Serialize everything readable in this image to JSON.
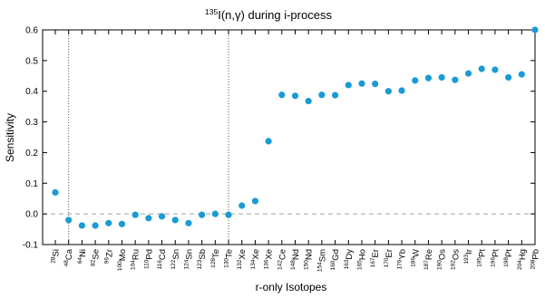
{
  "chart_data": {
    "type": "scatter",
    "title": {
      "superscript": "135",
      "text": "I(n,γ) during i-process"
    },
    "xlabel": "r-only Isotopes",
    "ylabel": "Sensitivity",
    "ylim": [
      -0.1,
      0.6
    ],
    "yticks": [
      "-0.1",
      "0.0",
      "0.1",
      "0.2",
      "0.3",
      "0.4",
      "0.5",
      "0.6"
    ],
    "ytick_values": [
      -0.1,
      0.0,
      0.1,
      0.2,
      0.3,
      0.4,
      0.5,
      0.6
    ],
    "reference_line": 0.0,
    "group_dividers_after": [
      "48Ca",
      "130Te"
    ],
    "grid": false,
    "marker_color": "#1a9ad6",
    "points": [
      {
        "mass": "28",
        "element": "Si",
        "value": 0.07
      },
      {
        "mass": "48",
        "element": "Ca",
        "value": -0.02
      },
      {
        "mass": "64",
        "element": "Ni",
        "value": -0.038
      },
      {
        "mass": "82",
        "element": "Se",
        "value": -0.038
      },
      {
        "mass": "96",
        "element": "Zr",
        "value": -0.03
      },
      {
        "mass": "100",
        "element": "Mo",
        "value": -0.033
      },
      {
        "mass": "104",
        "element": "Ru",
        "value": -0.003
      },
      {
        "mass": "110",
        "element": "Pd",
        "value": -0.014
      },
      {
        "mass": "116",
        "element": "Cd",
        "value": -0.008
      },
      {
        "mass": "122",
        "element": "Sn",
        "value": -0.02
      },
      {
        "mass": "124",
        "element": "Sn",
        "value": -0.03
      },
      {
        "mass": "123",
        "element": "Sb",
        "value": -0.003
      },
      {
        "mass": "128",
        "element": "Te",
        "value": 0.0
      },
      {
        "mass": "130",
        "element": "Te",
        "value": -0.003
      },
      {
        "mass": "132",
        "element": "Xe",
        "value": 0.027
      },
      {
        "mass": "134",
        "element": "Xe",
        "value": 0.042
      },
      {
        "mass": "136",
        "element": "Xe",
        "value": 0.237
      },
      {
        "mass": "142",
        "element": "Ce",
        "value": 0.388
      },
      {
        "mass": "148",
        "element": "Nd",
        "value": 0.385
      },
      {
        "mass": "150",
        "element": "Nd",
        "value": 0.368
      },
      {
        "mass": "154",
        "element": "Sm",
        "value": 0.388
      },
      {
        "mass": "160",
        "element": "Gd",
        "value": 0.387
      },
      {
        "mass": "163",
        "element": "Dy",
        "value": 0.42
      },
      {
        "mass": "165",
        "element": "Ho",
        "value": 0.425
      },
      {
        "mass": "167",
        "element": "Er",
        "value": 0.424
      },
      {
        "mass": "170",
        "element": "Er",
        "value": 0.4
      },
      {
        "mass": "176",
        "element": "Yb",
        "value": 0.402
      },
      {
        "mass": "186",
        "element": "W",
        "value": 0.435
      },
      {
        "mass": "187",
        "element": "Re",
        "value": 0.443
      },
      {
        "mass": "190",
        "element": "Os",
        "value": 0.445
      },
      {
        "mass": "192",
        "element": "Os",
        "value": 0.437
      },
      {
        "mass": "193",
        "element": "Ir",
        "value": 0.458
      },
      {
        "mass": "195",
        "element": "Pt",
        "value": 0.473
      },
      {
        "mass": "196",
        "element": "Pt",
        "value": 0.47
      },
      {
        "mass": "198",
        "element": "Pt",
        "value": 0.445
      },
      {
        "mass": "204",
        "element": "Hg",
        "value": 0.455
      },
      {
        "mass": "208",
        "element": "Pb",
        "value": 0.6
      }
    ]
  }
}
